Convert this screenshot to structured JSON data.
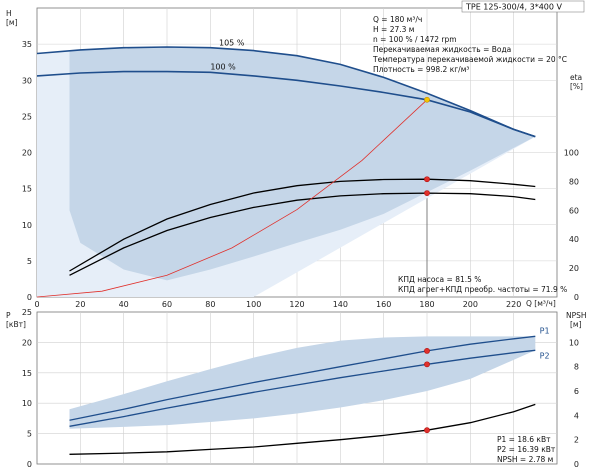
{
  "chart_data": [
    {
      "type": "line",
      "panel": "head-eta",
      "title": "TPE 125-300/4, 3*400 V",
      "ylabel_left_name": "H",
      "ylabel_left_unit": "[м]",
      "ylabel_right_name": "eta",
      "ylabel_right_unit": "[%]",
      "xlabel": "Q [м³/ч]",
      "x_ticks": [
        0,
        20,
        40,
        60,
        80,
        100,
        120,
        140,
        160,
        180,
        200,
        220
      ],
      "xlim": [
        0,
        240
      ],
      "y_left_ticks": [
        0,
        5,
        10,
        15,
        20,
        25,
        30,
        35
      ],
      "ylim_left": [
        0,
        40
      ],
      "y_right_ticks": [
        0,
        20,
        40,
        60,
        80,
        100
      ],
      "ylim_right": [
        0,
        200
      ],
      "grid": true,
      "info": [
        "Q = 180 м³/ч",
        "H = 27.3 м",
        "n = 100 % / 1472 rpm",
        "Перекачиваемая жидкость = Вода",
        "Температура перекачиваемой жидкости = 20 °C",
        "Плотность = 998.2 кг/м³"
      ],
      "efficiency_notes": [
        "КПД насоса = 81.5 %",
        "КПД агрег+КПД преобр. частоты = 71.9 %"
      ],
      "series": [
        {
          "name": "105 %",
          "color": "#1f4e8c",
          "x": [
            0,
            20,
            40,
            60,
            80,
            100,
            120,
            140,
            160,
            180,
            200,
            220,
            230
          ],
          "y": [
            33.7,
            34.2,
            34.5,
            34.6,
            34.5,
            34.1,
            33.4,
            32.2,
            30.4,
            28.2,
            25.8,
            23.2,
            22.2
          ]
        },
        {
          "name": "100 %",
          "color": "#1f4e8c",
          "x": [
            0,
            20,
            40,
            60,
            80,
            100,
            120,
            140,
            160,
            180,
            200,
            220,
            230
          ],
          "y": [
            30.6,
            31.0,
            31.2,
            31.2,
            31.1,
            30.6,
            30.0,
            29.2,
            28.3,
            27.3,
            25.6,
            23.2,
            22.2
          ]
        },
        {
          "name": "pump efficiency",
          "color": "#000000",
          "axis": "right",
          "x": [
            15,
            40,
            60,
            80,
            100,
            120,
            140,
            160,
            180,
            200,
            220,
            230
          ],
          "y": [
            18,
            40,
            54,
            64,
            72,
            77,
            80,
            81.3,
            81.5,
            80.5,
            78,
            76.5
          ]
        },
        {
          "name": "unit efficiency",
          "color": "#000000",
          "axis": "right",
          "x": [
            15,
            40,
            60,
            80,
            100,
            120,
            140,
            160,
            180,
            200,
            220,
            230
          ],
          "y": [
            15,
            34,
            46,
            55,
            62,
            67,
            70,
            71.5,
            71.9,
            71.5,
            69.5,
            67.5
          ]
        },
        {
          "name": "system curve",
          "color": "#e0302b",
          "x": [
            0,
            30,
            60,
            90,
            120,
            150,
            180
          ],
          "y": [
            0,
            0.8,
            3.0,
            6.8,
            12.1,
            18.9,
            27.3
          ]
        }
      ],
      "duty_points": [
        {
          "x": 180,
          "y": 27.3,
          "color": "#f5c400"
        },
        {
          "x": 180,
          "y": 81.5,
          "axis": "right",
          "color": "#e0302b"
        },
        {
          "x": 180,
          "y": 71.9,
          "axis": "right",
          "color": "#e0302b"
        }
      ]
    },
    {
      "type": "line",
      "panel": "power-npsh",
      "ylabel_left_name": "P",
      "ylabel_left_unit": "[кВт]",
      "ylabel_right_name": "NPSH",
      "ylabel_right_unit": "[м]",
      "xlim": [
        0,
        240
      ],
      "y_left_ticks": [
        0,
        5,
        10,
        15,
        20,
        25
      ],
      "ylim_left": [
        0,
        25
      ],
      "y_right_ticks": [
        0,
        2,
        4,
        6,
        8,
        10
      ],
      "ylim_right": [
        0,
        12.5
      ],
      "grid": true,
      "readout": [
        "P1 = 18.6 кВт",
        "P2 = 16.39 кВт",
        "NPSH = 2.78 м"
      ],
      "series": [
        {
          "name": "P1",
          "color": "#1f4e8c",
          "x": [
            15,
            40,
            60,
            80,
            100,
            120,
            140,
            160,
            180,
            200,
            220,
            230
          ],
          "y": [
            7.2,
            9.0,
            10.6,
            12.0,
            13.4,
            14.7,
            16.0,
            17.3,
            18.6,
            19.7,
            20.6,
            21.0
          ]
        },
        {
          "name": "P2",
          "color": "#1f4e8c",
          "x": [
            15,
            40,
            60,
            80,
            100,
            120,
            140,
            160,
            180,
            200,
            220,
            230
          ],
          "y": [
            6.2,
            7.8,
            9.2,
            10.5,
            11.8,
            13.0,
            14.2,
            15.3,
            16.39,
            17.4,
            18.3,
            18.7
          ]
        },
        {
          "name": "NPSH",
          "color": "#000000",
          "axis": "right",
          "x": [
            15,
            40,
            60,
            80,
            100,
            120,
            140,
            160,
            180,
            200,
            220,
            230
          ],
          "y": [
            0.8,
            0.9,
            1.0,
            1.2,
            1.4,
            1.7,
            2.0,
            2.35,
            2.78,
            3.4,
            4.3,
            4.9
          ]
        }
      ],
      "duty_points": [
        {
          "x": 180,
          "y": 18.6,
          "color": "#e0302b"
        },
        {
          "x": 180,
          "y": 16.39,
          "color": "#e0302b"
        },
        {
          "x": 180,
          "y": 2.78,
          "axis": "right",
          "color": "#e0302b"
        }
      ]
    }
  ]
}
